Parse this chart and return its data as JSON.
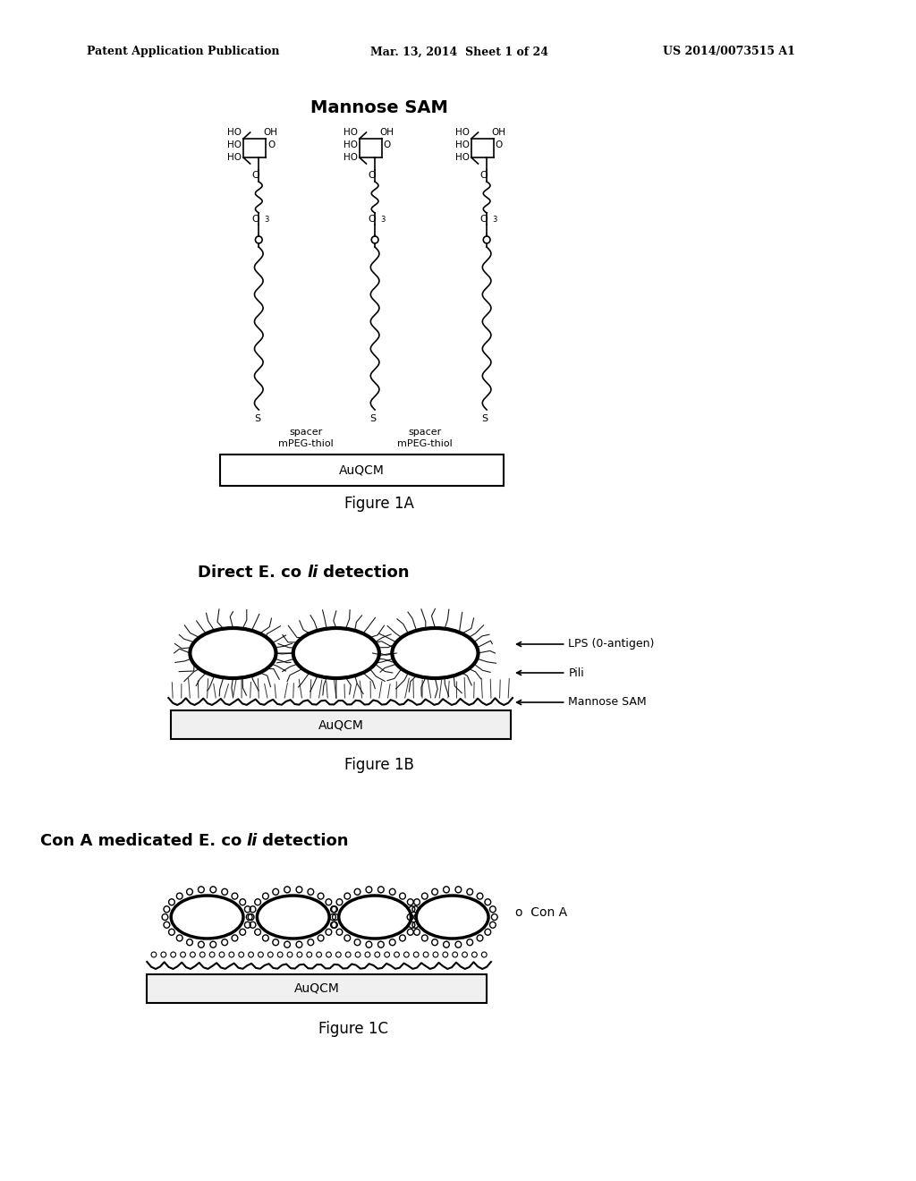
{
  "bg_color": "#ffffff",
  "header_left": "Patent Application Publication",
  "header_mid": "Mar. 13, 2014  Sheet 1 of 24",
  "header_right": "US 2014/0073515 A1",
  "fig1A_title": "Mannose SAM",
  "fig1A_caption": "Figure 1A",
  "fig1B_title_bold": "Direct E. co",
  "fig1B_title_italic": "li",
  "fig1B_title_rest": " detection",
  "fig1B_caption": "Figure 1B",
  "fig1C_title_bold": "Con A medicated E. co",
  "fig1C_title_italic": "li",
  "fig1C_title_rest": " detection",
  "fig1C_caption": "Figure 1C",
  "auqcm_label": "AuQCM",
  "spacer_label": "spacer",
  "mpeg_label": "mPEG-thiol",
  "lps_label": "LPS (0-antigen)",
  "pili_label": "Pili",
  "mannose_sam_label": "Mannose SAM",
  "con_a_label": "Con A"
}
